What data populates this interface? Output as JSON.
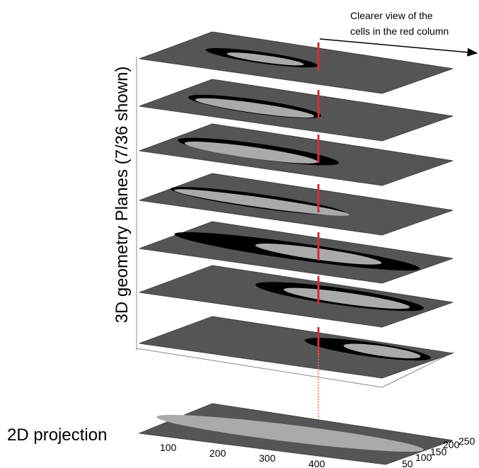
{
  "annotation": {
    "lines": [
      "Clearer view of the",
      "cells in the red column"
    ]
  },
  "axis_label": "3D geometry Planes (7/36 shown)",
  "projection_label": "2D projection",
  "x_ticks": [
    100,
    200,
    300,
    400
  ],
  "y_ticks": [
    50,
    100,
    150,
    200,
    250
  ]
}
